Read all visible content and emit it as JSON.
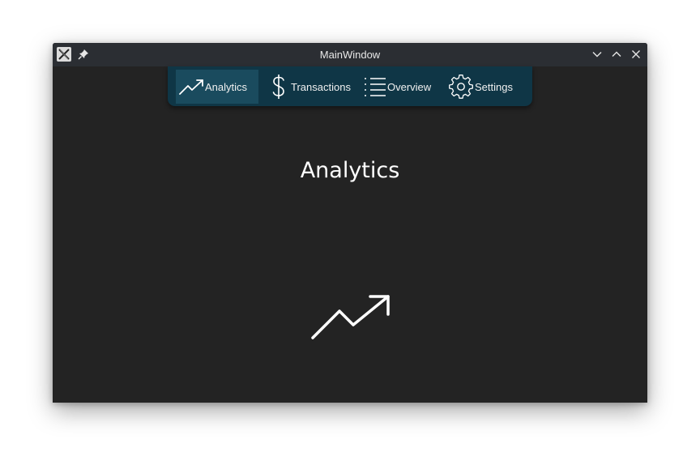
{
  "window": {
    "title": "MainWindow"
  },
  "titlebar": {
    "app_icon": "x11-app-icon",
    "pin_icon": "pin-icon",
    "controls": [
      "minimize-icon",
      "maximize-icon",
      "close-icon"
    ]
  },
  "tabs": [
    {
      "label": "Analytics",
      "icon": "trending-up-icon",
      "active": true
    },
    {
      "label": "Transactions",
      "icon": "dollar-icon",
      "active": false
    },
    {
      "label": "Overview",
      "icon": "list-icon",
      "active": false
    },
    {
      "label": "Settings",
      "icon": "gear-icon",
      "active": false
    }
  ],
  "page": {
    "title": "Analytics",
    "icon": "trending-up-icon"
  },
  "colors": {
    "window_bg": "#232323",
    "titlebar_bg": "#2b2e33",
    "tabbar_bg": "#0f3646",
    "tab_active_bg": "#1a4b5e",
    "text": "#ffffff"
  }
}
